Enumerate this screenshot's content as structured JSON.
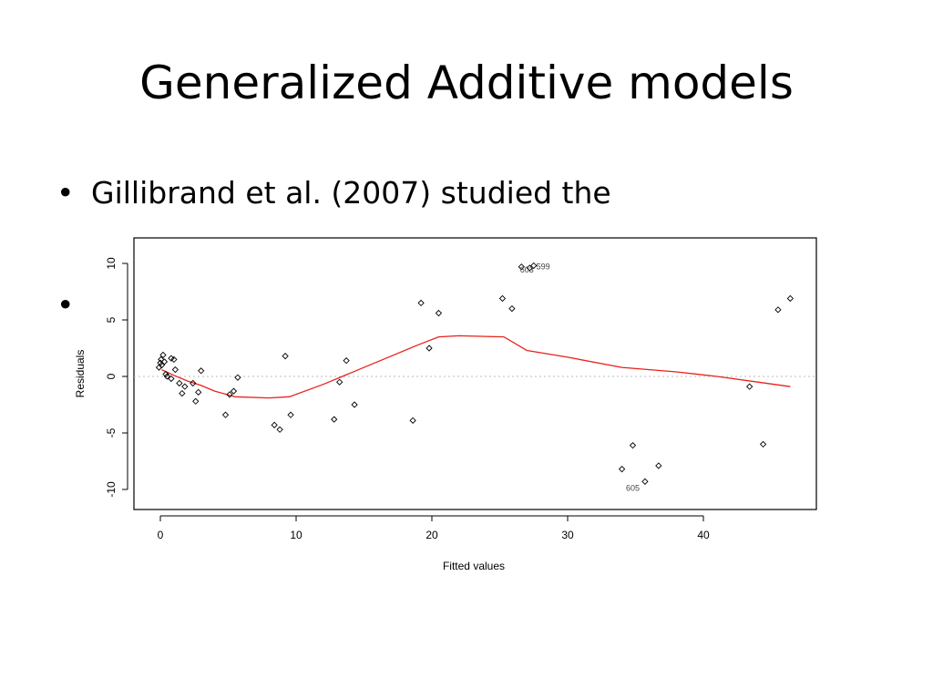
{
  "slide": {
    "title": "Generalized Additive models",
    "bullets": [
      {
        "marker": "•",
        "text": "Gillibrand et al. (2007) studied the"
      },
      {
        "marker": "•",
        "text": ""
      }
    ]
  },
  "chart_data": {
    "type": "scatter",
    "xlabel": "Fitted values",
    "ylabel": "Residuals",
    "xlim": [
      -1.5,
      48
    ],
    "ylim": [
      -11.5,
      12.5
    ],
    "xticks": [
      0,
      10,
      20,
      30,
      40
    ],
    "yticks": [
      -10,
      -5,
      0,
      5,
      10
    ],
    "reference_line": {
      "y": 0,
      "style": "dotted",
      "color": "#bbbbbb"
    },
    "points": [
      {
        "x": -0.1,
        "y": 0.8
      },
      {
        "x": 0.0,
        "y": 1.2
      },
      {
        "x": 0.05,
        "y": 1.5
      },
      {
        "x": 0.1,
        "y": 1.0
      },
      {
        "x": 0.2,
        "y": 1.9
      },
      {
        "x": 0.3,
        "y": 1.3
      },
      {
        "x": 0.4,
        "y": 0.2
      },
      {
        "x": 0.5,
        "y": 0.0
      },
      {
        "x": 0.8,
        "y": -0.2
      },
      {
        "x": 0.8,
        "y": 1.6
      },
      {
        "x": 1.0,
        "y": 1.5
      },
      {
        "x": 1.1,
        "y": 0.6
      },
      {
        "x": 1.4,
        "y": -0.6
      },
      {
        "x": 1.6,
        "y": -1.5
      },
      {
        "x": 1.8,
        "y": -0.9
      },
      {
        "x": 2.4,
        "y": -0.6
      },
      {
        "x": 2.6,
        "y": -2.2
      },
      {
        "x": 2.8,
        "y": -1.4
      },
      {
        "x": 3.0,
        "y": 0.5
      },
      {
        "x": 4.8,
        "y": -3.4
      },
      {
        "x": 5.1,
        "y": -1.6
      },
      {
        "x": 5.4,
        "y": -1.3
      },
      {
        "x": 5.7,
        "y": -0.1
      },
      {
        "x": 8.4,
        "y": -4.3
      },
      {
        "x": 8.8,
        "y": -4.7
      },
      {
        "x": 9.2,
        "y": 1.8
      },
      {
        "x": 9.6,
        "y": -3.4
      },
      {
        "x": 12.8,
        "y": -3.8
      },
      {
        "x": 13.2,
        "y": -0.5
      },
      {
        "x": 13.7,
        "y": 1.4
      },
      {
        "x": 14.3,
        "y": -2.5
      },
      {
        "x": 18.6,
        "y": -3.9
      },
      {
        "x": 19.2,
        "y": 6.5
      },
      {
        "x": 19.8,
        "y": 2.5
      },
      {
        "x": 20.5,
        "y": 5.6
      },
      {
        "x": 25.2,
        "y": 6.9
      },
      {
        "x": 25.9,
        "y": 6.0
      },
      {
        "x": 26.6,
        "y": 9.7
      },
      {
        "x": 27.2,
        "y": 9.6
      },
      {
        "x": 27.5,
        "y": 9.8
      },
      {
        "x": 34.0,
        "y": -8.2
      },
      {
        "x": 34.8,
        "y": -6.1
      },
      {
        "x": 35.7,
        "y": -9.3
      },
      {
        "x": 36.7,
        "y": -7.9
      },
      {
        "x": 43.4,
        "y": -0.9
      },
      {
        "x": 44.4,
        "y": -6.0
      },
      {
        "x": 45.5,
        "y": 5.9
      },
      {
        "x": 46.4,
        "y": 6.9
      }
    ],
    "point_labels": [
      {
        "x": 27.0,
        "y": 9.5,
        "text": "603"
      },
      {
        "x": 28.2,
        "y": 9.8,
        "text": "599"
      },
      {
        "x": 34.8,
        "y": -9.8,
        "text": "605"
      }
    ],
    "smooth": {
      "color": "#e8211b",
      "points": [
        {
          "x": 0.1,
          "y": 0.6
        },
        {
          "x": 1.0,
          "y": 0.1
        },
        {
          "x": 2.0,
          "y": -0.4
        },
        {
          "x": 3.0,
          "y": -0.8
        },
        {
          "x": 4.0,
          "y": -1.3
        },
        {
          "x": 5.5,
          "y": -1.8
        },
        {
          "x": 8.0,
          "y": -1.9
        },
        {
          "x": 9.5,
          "y": -1.8
        },
        {
          "x": 12.0,
          "y": -0.7
        },
        {
          "x": 14.0,
          "y": 0.3
        },
        {
          "x": 17.0,
          "y": 1.8
        },
        {
          "x": 19.0,
          "y": 2.8
        },
        {
          "x": 20.5,
          "y": 3.5
        },
        {
          "x": 22.0,
          "y": 3.6
        },
        {
          "x": 25.3,
          "y": 3.5
        },
        {
          "x": 27.0,
          "y": 2.3
        },
        {
          "x": 30.0,
          "y": 1.7
        },
        {
          "x": 34.0,
          "y": 0.8
        },
        {
          "x": 38.0,
          "y": 0.4
        },
        {
          "x": 41.0,
          "y": 0.0
        },
        {
          "x": 44.0,
          "y": -0.5
        },
        {
          "x": 46.4,
          "y": -0.9
        }
      ]
    }
  }
}
